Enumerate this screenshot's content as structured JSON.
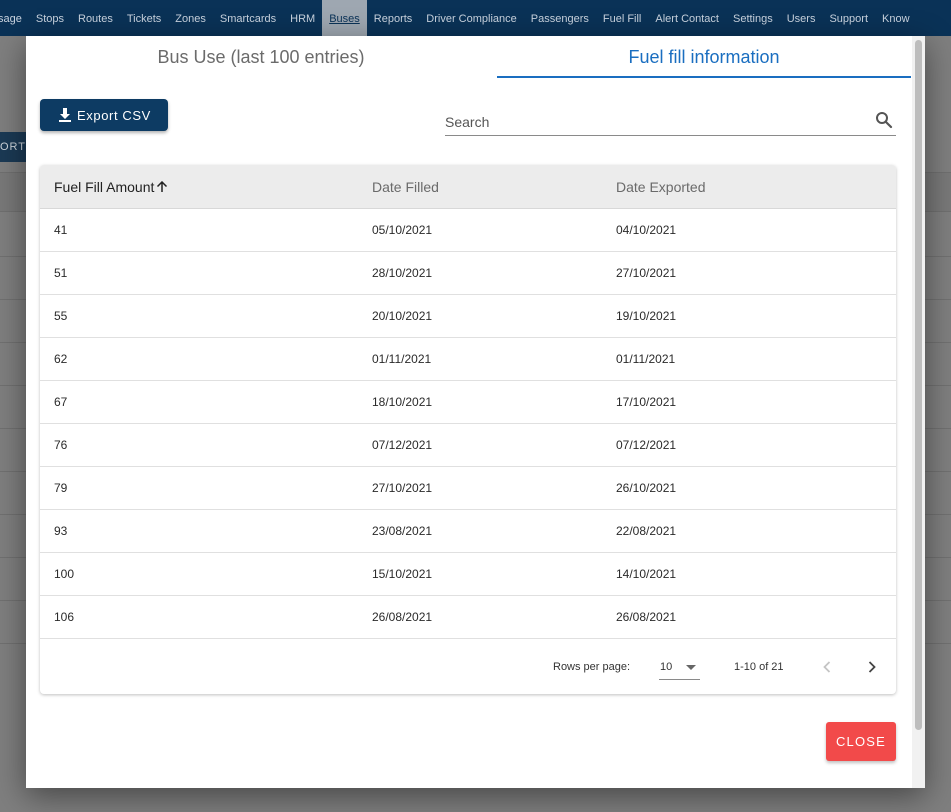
{
  "nav": {
    "items": [
      {
        "label": "sage"
      },
      {
        "label": "Stops"
      },
      {
        "label": "Routes"
      },
      {
        "label": "Tickets"
      },
      {
        "label": "Zones"
      },
      {
        "label": "Smartcards"
      },
      {
        "label": "HRM"
      },
      {
        "label": "Buses"
      },
      {
        "label": "Reports"
      },
      {
        "label": "Driver Compliance"
      },
      {
        "label": "Passengers"
      },
      {
        "label": "Fuel Fill"
      },
      {
        "label": "Alert Contact"
      },
      {
        "label": "Settings"
      },
      {
        "label": "Users"
      },
      {
        "label": "Support"
      },
      {
        "label": "Know"
      }
    ],
    "active_label": "Buses"
  },
  "background": {
    "button_label": "ORT"
  },
  "modal": {
    "tabs": {
      "bus_use": "Bus Use (last 100 entries)",
      "fuel_fill": "Fuel fill information"
    },
    "active_tab": "Fuel fill information",
    "export_label": "Export CSV",
    "search": {
      "placeholder": "Search",
      "value": ""
    },
    "table": {
      "headers": {
        "amount": "Fuel Fill Amount",
        "date_filled": "Date Filled",
        "date_exported": "Date Exported"
      },
      "sort": {
        "column": "Fuel Fill Amount",
        "direction": "ascending"
      },
      "rows": [
        {
          "amount": "41",
          "date_filled": "05/10/2021",
          "date_exported": "04/10/2021"
        },
        {
          "amount": "51",
          "date_filled": "28/10/2021",
          "date_exported": "27/10/2021"
        },
        {
          "amount": "55",
          "date_filled": "20/10/2021",
          "date_exported": "19/10/2021"
        },
        {
          "amount": "62",
          "date_filled": "01/11/2021",
          "date_exported": "01/11/2021"
        },
        {
          "amount": "67",
          "date_filled": "18/10/2021",
          "date_exported": "17/10/2021"
        },
        {
          "amount": "76",
          "date_filled": "07/12/2021",
          "date_exported": "07/12/2021"
        },
        {
          "amount": "79",
          "date_filled": "27/10/2021",
          "date_exported": "26/10/2021"
        },
        {
          "amount": "93",
          "date_filled": "23/08/2021",
          "date_exported": "22/08/2021"
        },
        {
          "amount": "100",
          "date_filled": "15/10/2021",
          "date_exported": "14/10/2021"
        },
        {
          "amount": "106",
          "date_filled": "26/08/2021",
          "date_exported": "26/08/2021"
        }
      ]
    },
    "pagination": {
      "rows_per_page_label": "Rows per page:",
      "rows_per_page": "10",
      "range": "1-10 of 21"
    },
    "close_label": "CLOSE"
  },
  "colors": {
    "nav_bg": "#0a3257",
    "accent": "#1a6ec0",
    "export_btn": "#0d3b63",
    "close_btn": "#f24a4a"
  },
  "icons": {
    "export": "download-icon",
    "search": "search-icon",
    "sort": "arrow-up-icon",
    "select": "caret-down-icon",
    "prev": "chevron-left-icon",
    "next": "chevron-right-icon"
  }
}
